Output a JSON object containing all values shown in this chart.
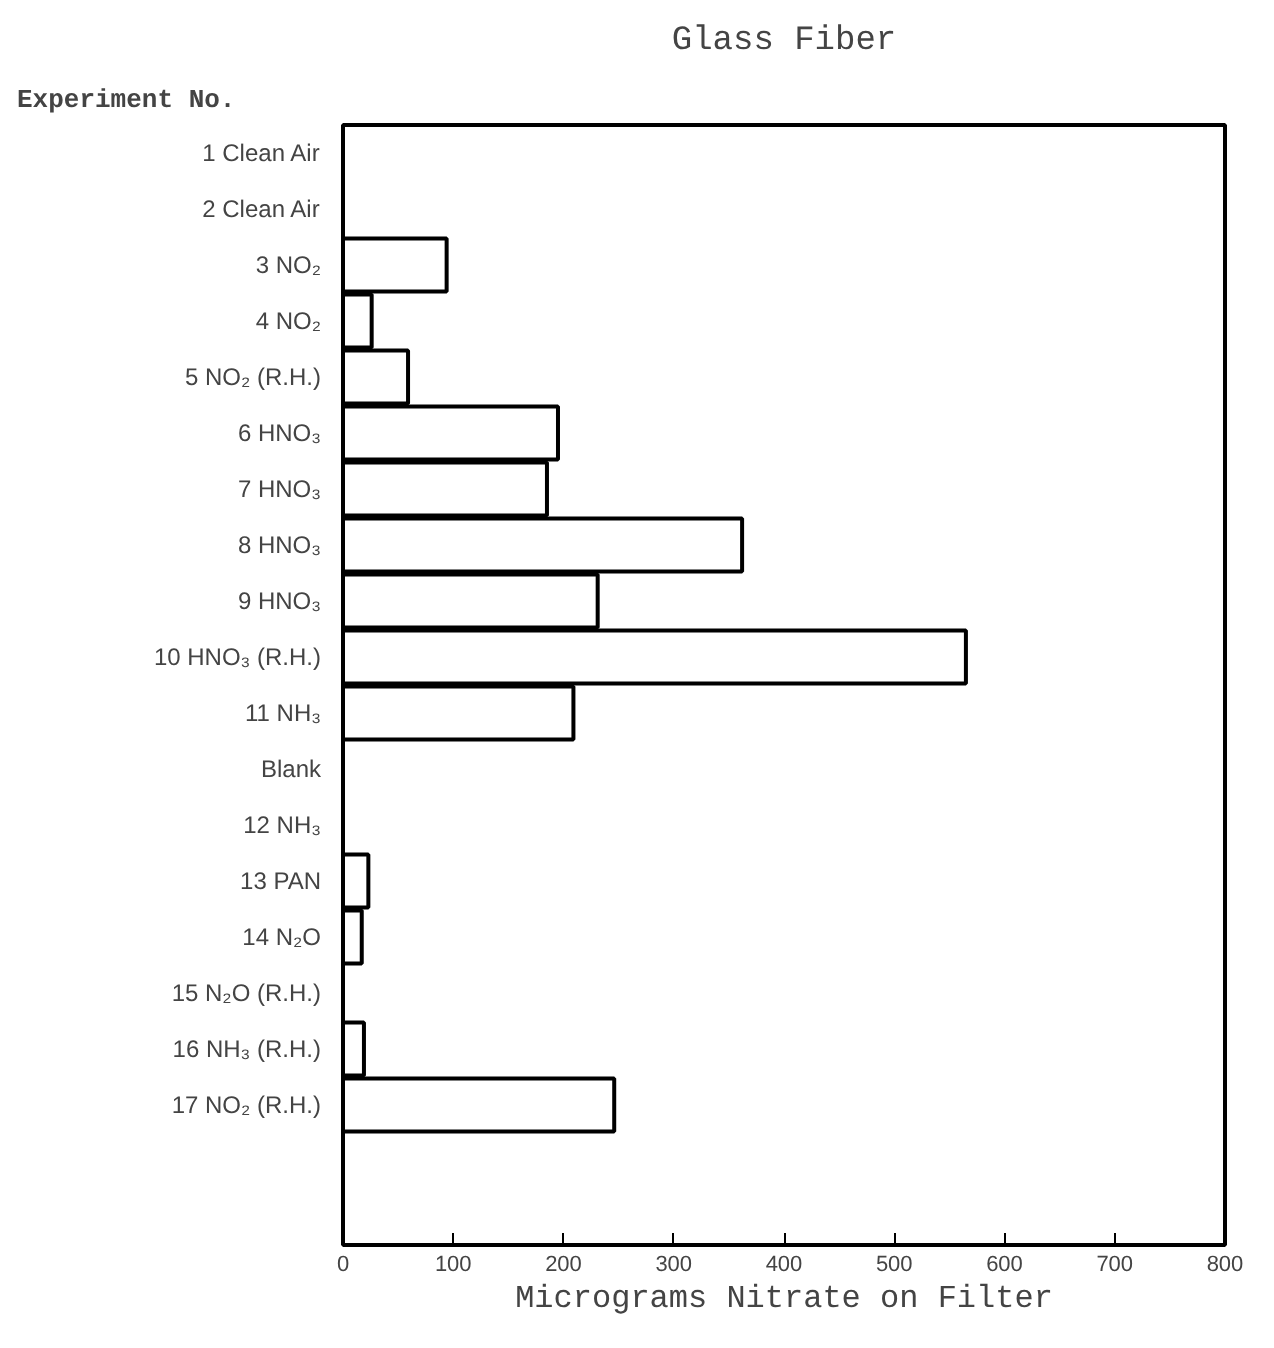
{
  "chart_data": {
    "type": "bar",
    "orientation": "horizontal",
    "title": "Glass Fiber",
    "ylabel": "Experiment No.",
    "xlabel": "Micrograms Nitrate on Filter",
    "categories": [
      "1 Clean Air",
      "2 Clean Air",
      "3 NO₂",
      "4 NO₂",
      "5 NO₂ (R.H.)",
      "6 HNO₃",
      "7 HNO₃",
      "8 HNO₃",
      "9 HNO₃",
      "10 HNO₃ (R.H.)",
      "11 NH₃",
      "Blank",
      "12 NH₃",
      "13 PAN",
      "14 N₂O",
      "15 N₂O (R.H.)",
      "16 NH₃ (R.H.)",
      "17 NO₂ (R.H.)",
      null,
      null
    ],
    "values": [
      0,
      0,
      94,
      26,
      59,
      195,
      185,
      362,
      231,
      565,
      209,
      null,
      null,
      23,
      17,
      null,
      19,
      246,
      null,
      null
    ],
    "color": "#ffffff",
    "xlim": [
      0,
      800
    ],
    "xticks": [
      0,
      100,
      200,
      300,
      400,
      500,
      600,
      700,
      800
    ],
    "grid": false
  }
}
